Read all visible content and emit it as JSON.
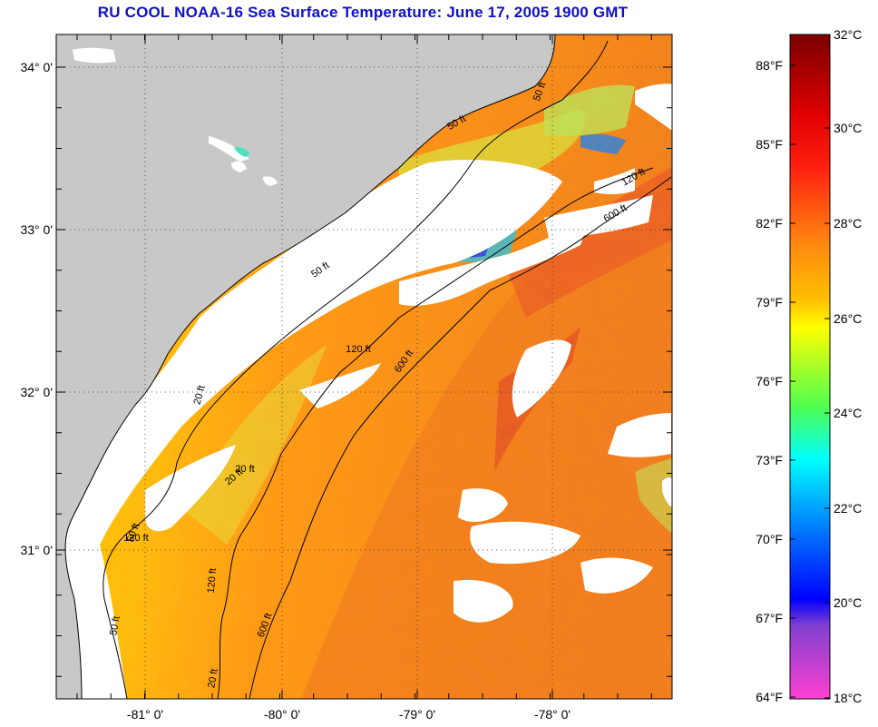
{
  "title": "RU COOL  NOAA-16  Sea Surface Temperature:  June 17, 2005 1900 GMT",
  "map": {
    "lat_labels": [
      "34° 0'",
      "33° 0'",
      "32° 0'",
      "31° 0'"
    ],
    "lon_labels": [
      "-81° 0'",
      "-80° 0'",
      "-79° 0'",
      "-78° 0'"
    ],
    "contour_labels": [
      "50 ft",
      "120 ft",
      "600 ft",
      "50 ft",
      "120 ft",
      "600 ft",
      "20 ft",
      "50 ft",
      "120 ft",
      "20 ft",
      "50 ft",
      "120 ft",
      "600 ft",
      "50 ft",
      "20 ft",
      "20 ft"
    ],
    "grid": "dotted"
  },
  "colorbar": {
    "fahrenheit_labels": [
      "88°F",
      "85°F",
      "82°F",
      "79°F",
      "76°F",
      "73°F",
      "70°F",
      "67°F",
      "64°F"
    ],
    "celsius_labels": [
      "32°C",
      "30°C",
      "28°C",
      "26°C",
      "24°C",
      "22°C",
      "20°C",
      "18°C"
    ],
    "colors": [
      "#7a0000",
      "#ff1010",
      "#ff8c10",
      "#ffff00",
      "#00ffff",
      "#0000ff",
      "#ff40d0"
    ]
  }
}
